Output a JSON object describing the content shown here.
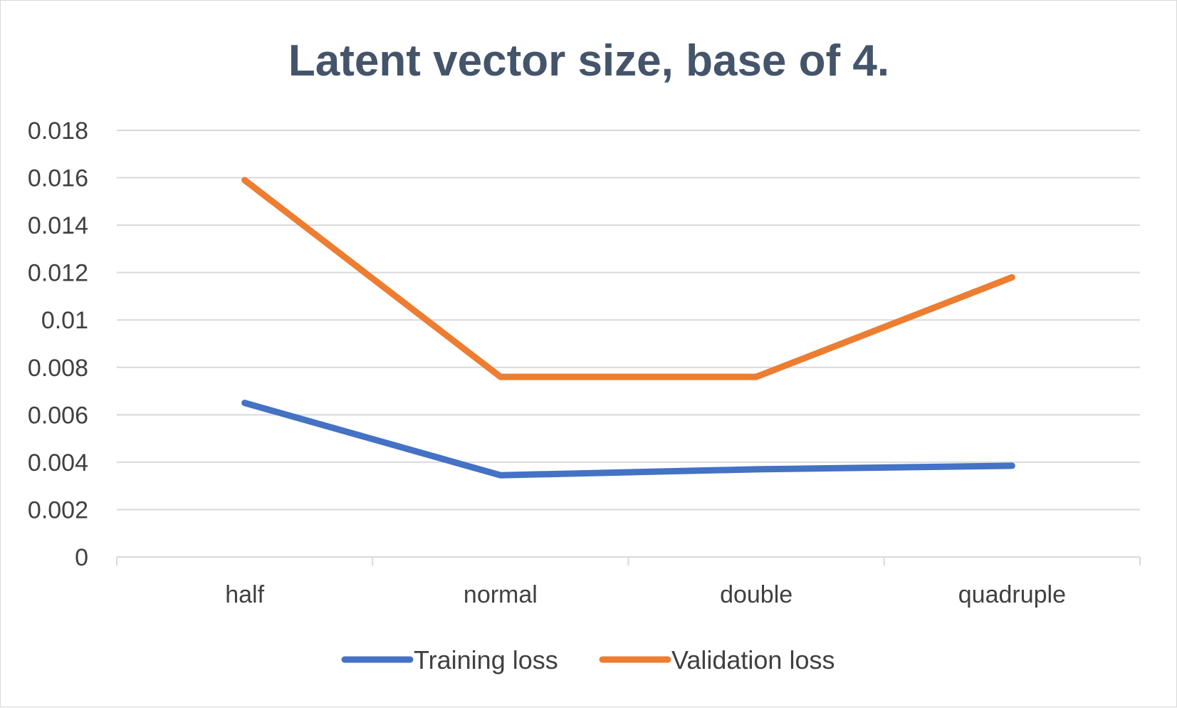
{
  "chart_data": {
    "type": "line",
    "title": "Latent vector size, base of 4.",
    "xlabel": "",
    "ylabel": "",
    "categories": [
      "half",
      "normal",
      "double",
      "quadruple"
    ],
    "series": [
      {
        "name": "Training loss",
        "color": "#4472c4",
        "values": [
          0.0065,
          0.00345,
          0.0037,
          0.00385
        ]
      },
      {
        "name": "Validation loss",
        "color": "#ed7d31",
        "values": [
          0.0159,
          0.0076,
          0.0076,
          0.0118
        ]
      }
    ],
    "ylim": [
      0,
      0.018
    ],
    "y_ticks": [
      "0",
      "0.002",
      "0.004",
      "0.006",
      "0.008",
      "0.01",
      "0.012",
      "0.014",
      "0.016",
      "0.018"
    ],
    "grid": true,
    "gridline_color": "#d9d9d9",
    "legend_position": "bottom"
  }
}
